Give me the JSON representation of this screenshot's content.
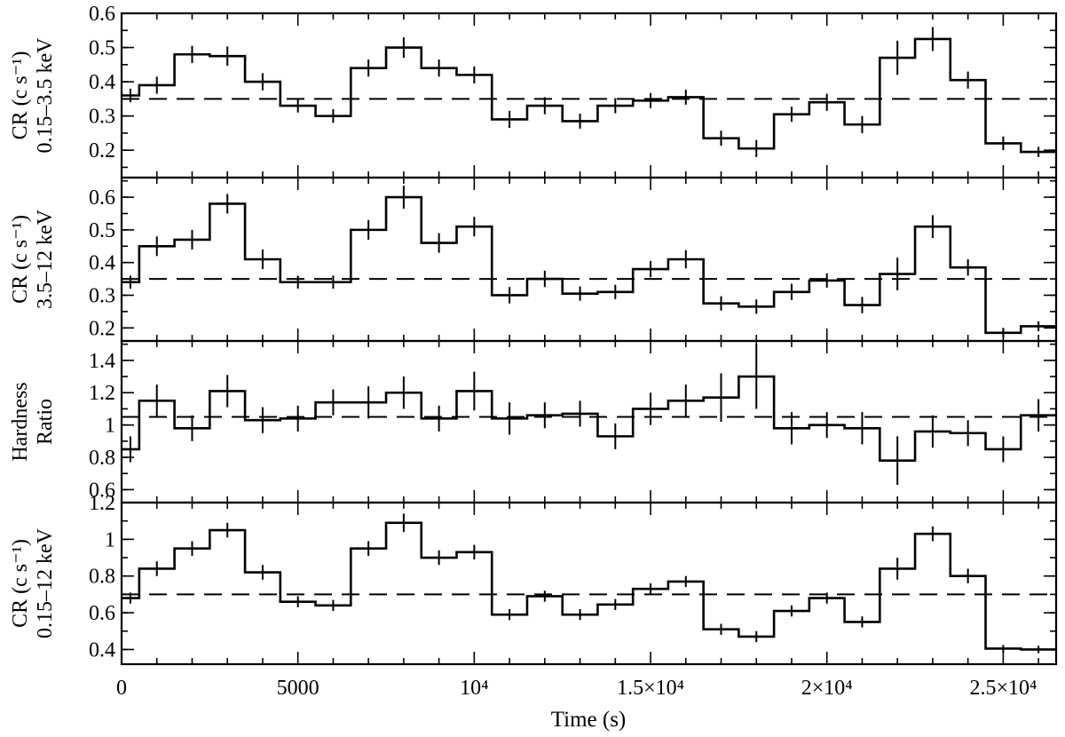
{
  "chart_data": {
    "type": "line",
    "style": "step histogram with vertical error bars and dashed mean line",
    "x_axis": {
      "label": "Time (s)",
      "range": [
        0,
        26500
      ],
      "ticks": [
        0,
        5000,
        10000,
        15000,
        20000,
        25000
      ],
      "tick_labels": [
        "0",
        "5000",
        "10⁴",
        "1.5×10⁴",
        "2×10⁴",
        "2.5×10⁴"
      ]
    },
    "bins": {
      "edges": [
        0,
        500,
        1500,
        2500,
        3500,
        4500,
        5500,
        6500,
        7500,
        8500,
        9500,
        10500,
        11500,
        12500,
        13500,
        14500,
        15500,
        16500,
        17500,
        18500,
        19500,
        20500,
        21500,
        22500,
        23500,
        24500,
        25500,
        26500
      ],
      "centers": [
        250,
        1000,
        2000,
        3000,
        4000,
        5000,
        6000,
        7000,
        8000,
        9000,
        10000,
        11000,
        12000,
        13000,
        14000,
        15000,
        16000,
        17000,
        18000,
        19000,
        20000,
        21000,
        22000,
        23000,
        24000,
        25000,
        26000
      ]
    },
    "panels": [
      {
        "ylabel_line1": "CR (c s⁻¹)",
        "ylabel_line2": "0.15–3.5 keV",
        "ylim": [
          0.12,
          0.6
        ],
        "yticks": [
          0.2,
          0.3,
          0.4,
          0.5,
          0.6
        ],
        "ytick_labels": [
          "0.2",
          "0.3",
          "0.4",
          "0.5",
          "0.6"
        ],
        "mean": 0.35,
        "values": [
          0.36,
          0.39,
          0.48,
          0.475,
          0.4,
          0.33,
          0.3,
          0.44,
          0.5,
          0.44,
          0.42,
          0.29,
          0.33,
          0.285,
          0.33,
          0.345,
          0.355,
          0.235,
          0.205,
          0.305,
          0.34,
          0.275,
          0.47,
          0.525,
          0.405,
          0.22,
          0.195
        ],
        "errors": [
          0.02,
          0.025,
          0.025,
          0.028,
          0.025,
          0.02,
          0.02,
          0.025,
          0.03,
          0.025,
          0.025,
          0.025,
          0.025,
          0.022,
          0.022,
          0.022,
          0.022,
          0.022,
          0.025,
          0.022,
          0.025,
          0.025,
          0.05,
          0.035,
          0.025,
          0.02,
          0.015
        ]
      },
      {
        "ylabel_line1": "CR (c s⁻¹)",
        "ylabel_line2": "3.5–12 keV",
        "ylim": [
          0.16,
          0.66
        ],
        "yticks": [
          0.2,
          0.3,
          0.4,
          0.5,
          0.6
        ],
        "ytick_labels": [
          "0.2",
          "0.3",
          "0.4",
          "0.5",
          "0.6"
        ],
        "mean": 0.35,
        "values": [
          0.34,
          0.45,
          0.47,
          0.58,
          0.41,
          0.34,
          0.34,
          0.5,
          0.6,
          0.46,
          0.51,
          0.3,
          0.35,
          0.305,
          0.31,
          0.38,
          0.41,
          0.275,
          0.265,
          0.31,
          0.345,
          0.27,
          0.365,
          0.51,
          0.385,
          0.185,
          0.205
        ],
        "errors": [
          0.02,
          0.03,
          0.03,
          0.03,
          0.03,
          0.02,
          0.02,
          0.03,
          0.035,
          0.03,
          0.03,
          0.025,
          0.025,
          0.022,
          0.022,
          0.025,
          0.028,
          0.022,
          0.022,
          0.025,
          0.022,
          0.025,
          0.05,
          0.035,
          0.025,
          0.015,
          0.015
        ]
      },
      {
        "ylabel_line1": "Hardness",
        "ylabel_line2": "Ratio",
        "ylim": [
          0.52,
          1.52
        ],
        "yticks": [
          0.6,
          0.8,
          1.0,
          1.2,
          1.4
        ],
        "ytick_labels": [
          "0.6",
          "0.8",
          "1",
          "1.2",
          "1.4"
        ],
        "mean": 1.05,
        "values": [
          0.85,
          1.15,
          0.98,
          1.21,
          1.03,
          1.04,
          1.14,
          1.14,
          1.2,
          1.04,
          1.21,
          1.04,
          1.06,
          1.07,
          0.93,
          1.1,
          1.15,
          1.17,
          1.3,
          0.98,
          1.0,
          0.98,
          0.78,
          0.96,
          0.95,
          0.85,
          1.06
        ],
        "errors": [
          0.08,
          0.1,
          0.08,
          0.1,
          0.08,
          0.08,
          0.08,
          0.1,
          0.1,
          0.08,
          0.12,
          0.1,
          0.08,
          0.08,
          0.08,
          0.1,
          0.1,
          0.15,
          0.2,
          0.1,
          0.08,
          0.1,
          0.15,
          0.1,
          0.08,
          0.08,
          0.1
        ]
      },
      {
        "ylabel_line1": "CR (c s⁻¹)",
        "ylabel_line2": "0.15–12 keV",
        "ylim": [
          0.32,
          1.2
        ],
        "yticks": [
          0.4,
          0.6,
          0.8,
          1.0,
          1.2
        ],
        "ytick_labels": [
          "0.4",
          "0.6",
          "0.8",
          "1",
          "1.2"
        ],
        "mean": 0.7,
        "values": [
          0.68,
          0.84,
          0.95,
          1.05,
          0.82,
          0.66,
          0.64,
          0.95,
          1.09,
          0.9,
          0.93,
          0.59,
          0.69,
          0.59,
          0.645,
          0.73,
          0.77,
          0.51,
          0.47,
          0.61,
          0.68,
          0.55,
          0.84,
          1.03,
          0.8,
          0.405,
          0.4
        ],
        "errors": [
          0.03,
          0.04,
          0.04,
          0.04,
          0.04,
          0.03,
          0.03,
          0.04,
          0.05,
          0.04,
          0.04,
          0.03,
          0.03,
          0.03,
          0.03,
          0.03,
          0.03,
          0.03,
          0.03,
          0.03,
          0.03,
          0.03,
          0.06,
          0.04,
          0.04,
          0.02,
          0.02
        ]
      }
    ]
  }
}
